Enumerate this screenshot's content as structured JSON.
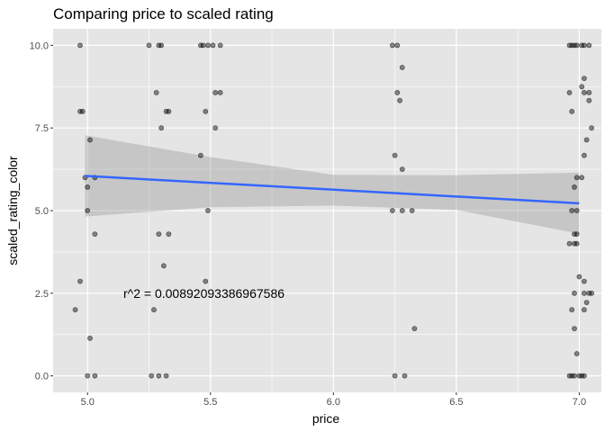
{
  "chart_data": {
    "type": "scatter",
    "title": "Comparing price to scaled rating",
    "xlabel": "price",
    "ylabel": "scaled_rating_color",
    "xlim": [
      4.86,
      7.09
    ],
    "ylim": [
      -0.5,
      10.5
    ],
    "x_ticks": [
      5.0,
      5.5,
      6.0,
      6.5,
      7.0
    ],
    "x_tick_labels": [
      "5.0",
      "5.5",
      "6.0",
      "6.5",
      "7.0"
    ],
    "y_ticks": [
      0.0,
      2.5,
      5.0,
      7.5,
      10.0
    ],
    "y_tick_labels": [
      "0.0",
      "2.5",
      "5.0",
      "7.5",
      "10.0"
    ],
    "grid": true,
    "annotation": "r^2 = 0.00892093386967586",
    "annotation_position": {
      "x": 5.14,
      "y": 2.43
    },
    "colors": {
      "panel_background": "#e5e5e5",
      "grid": "#ffffff",
      "point": "#000000",
      "regression_line": "#3366ff",
      "confidence_band": "#999999"
    },
    "regression": {
      "x": [
        4.99,
        7.0
      ],
      "y": [
        6.05,
        5.22
      ]
    },
    "confidence_band": {
      "x": [
        4.99,
        5.5,
        6.0,
        6.5,
        7.0
      ],
      "lower": [
        4.82,
        5.1,
        5.15,
        5.02,
        4.3
      ],
      "upper": [
        7.28,
        6.62,
        6.08,
        6.07,
        6.15
      ]
    },
    "points": [
      {
        "x": 4.97,
        "y": 10.0
      },
      {
        "x": 4.97,
        "y": 8.0
      },
      {
        "x": 4.98,
        "y": 8.0
      },
      {
        "x": 4.99,
        "y": 6.0
      },
      {
        "x": 5.01,
        "y": 7.14
      },
      {
        "x": 5.0,
        "y": 5.71
      },
      {
        "x": 5.03,
        "y": 6.0
      },
      {
        "x": 5.0,
        "y": 5.0
      },
      {
        "x": 5.03,
        "y": 4.29
      },
      {
        "x": 4.97,
        "y": 2.86
      },
      {
        "x": 4.95,
        "y": 2.0
      },
      {
        "x": 5.01,
        "y": 1.14
      },
      {
        "x": 5.0,
        "y": 0.0
      },
      {
        "x": 5.03,
        "y": 0.0
      },
      {
        "x": 5.25,
        "y": 10.0
      },
      {
        "x": 5.29,
        "y": 10.0
      },
      {
        "x": 5.3,
        "y": 10.0
      },
      {
        "x": 5.28,
        "y": 8.57
      },
      {
        "x": 5.32,
        "y": 8.0
      },
      {
        "x": 5.33,
        "y": 8.0
      },
      {
        "x": 5.3,
        "y": 7.5
      },
      {
        "x": 5.29,
        "y": 4.29
      },
      {
        "x": 5.33,
        "y": 4.29
      },
      {
        "x": 5.31,
        "y": 3.33
      },
      {
        "x": 5.27,
        "y": 2.0
      },
      {
        "x": 5.26,
        "y": 0.0
      },
      {
        "x": 5.29,
        "y": 0.0
      },
      {
        "x": 5.32,
        "y": 0.0
      },
      {
        "x": 5.46,
        "y": 10.0
      },
      {
        "x": 5.47,
        "y": 10.0
      },
      {
        "x": 5.49,
        "y": 10.0
      },
      {
        "x": 5.51,
        "y": 10.0
      },
      {
        "x": 5.54,
        "y": 10.0
      },
      {
        "x": 5.52,
        "y": 8.57
      },
      {
        "x": 5.54,
        "y": 8.57
      },
      {
        "x": 5.48,
        "y": 8.0
      },
      {
        "x": 5.52,
        "y": 7.5
      },
      {
        "x": 5.46,
        "y": 6.67
      },
      {
        "x": 5.49,
        "y": 5.0
      },
      {
        "x": 5.48,
        "y": 2.86
      },
      {
        "x": 6.24,
        "y": 10.0
      },
      {
        "x": 6.26,
        "y": 10.0
      },
      {
        "x": 6.28,
        "y": 9.33
      },
      {
        "x": 6.26,
        "y": 8.57
      },
      {
        "x": 6.27,
        "y": 8.33
      },
      {
        "x": 6.25,
        "y": 6.67
      },
      {
        "x": 6.28,
        "y": 6.25
      },
      {
        "x": 6.24,
        "y": 5.0
      },
      {
        "x": 6.28,
        "y": 5.0
      },
      {
        "x": 6.32,
        "y": 5.0
      },
      {
        "x": 6.33,
        "y": 1.43
      },
      {
        "x": 6.25,
        "y": 0.0
      },
      {
        "x": 6.29,
        "y": 0.0
      },
      {
        "x": 6.96,
        "y": 10.0
      },
      {
        "x": 6.97,
        "y": 10.0
      },
      {
        "x": 6.98,
        "y": 10.0
      },
      {
        "x": 6.99,
        "y": 10.0
      },
      {
        "x": 7.01,
        "y": 10.0
      },
      {
        "x": 7.02,
        "y": 10.0
      },
      {
        "x": 7.04,
        "y": 10.0
      },
      {
        "x": 7.02,
        "y": 9.0
      },
      {
        "x": 7.01,
        "y": 8.75
      },
      {
        "x": 7.02,
        "y": 8.57
      },
      {
        "x": 7.04,
        "y": 8.57
      },
      {
        "x": 6.96,
        "y": 8.57
      },
      {
        "x": 7.04,
        "y": 8.33
      },
      {
        "x": 6.97,
        "y": 8.0
      },
      {
        "x": 7.05,
        "y": 7.5
      },
      {
        "x": 7.03,
        "y": 7.14
      },
      {
        "x": 7.02,
        "y": 6.67
      },
      {
        "x": 6.99,
        "y": 6.0
      },
      {
        "x": 7.01,
        "y": 6.0
      },
      {
        "x": 6.98,
        "y": 5.71
      },
      {
        "x": 6.97,
        "y": 5.0
      },
      {
        "x": 6.99,
        "y": 5.0
      },
      {
        "x": 6.96,
        "y": 4.0
      },
      {
        "x": 6.98,
        "y": 4.0
      },
      {
        "x": 6.99,
        "y": 4.0
      },
      {
        "x": 6.98,
        "y": 4.29
      },
      {
        "x": 6.99,
        "y": 4.29
      },
      {
        "x": 7.0,
        "y": 3.0
      },
      {
        "x": 7.02,
        "y": 2.86
      },
      {
        "x": 6.98,
        "y": 2.5
      },
      {
        "x": 7.02,
        "y": 2.5
      },
      {
        "x": 7.04,
        "y": 2.5
      },
      {
        "x": 7.05,
        "y": 2.5
      },
      {
        "x": 7.03,
        "y": 2.22
      },
      {
        "x": 6.97,
        "y": 2.0
      },
      {
        "x": 7.02,
        "y": 2.0
      },
      {
        "x": 6.98,
        "y": 1.43
      },
      {
        "x": 6.99,
        "y": 0.67
      },
      {
        "x": 6.96,
        "y": 0.0
      },
      {
        "x": 6.97,
        "y": 0.0
      },
      {
        "x": 6.98,
        "y": 0.0
      },
      {
        "x": 7.0,
        "y": 0.0
      },
      {
        "x": 7.01,
        "y": 0.0
      },
      {
        "x": 7.02,
        "y": 0.0
      }
    ]
  }
}
